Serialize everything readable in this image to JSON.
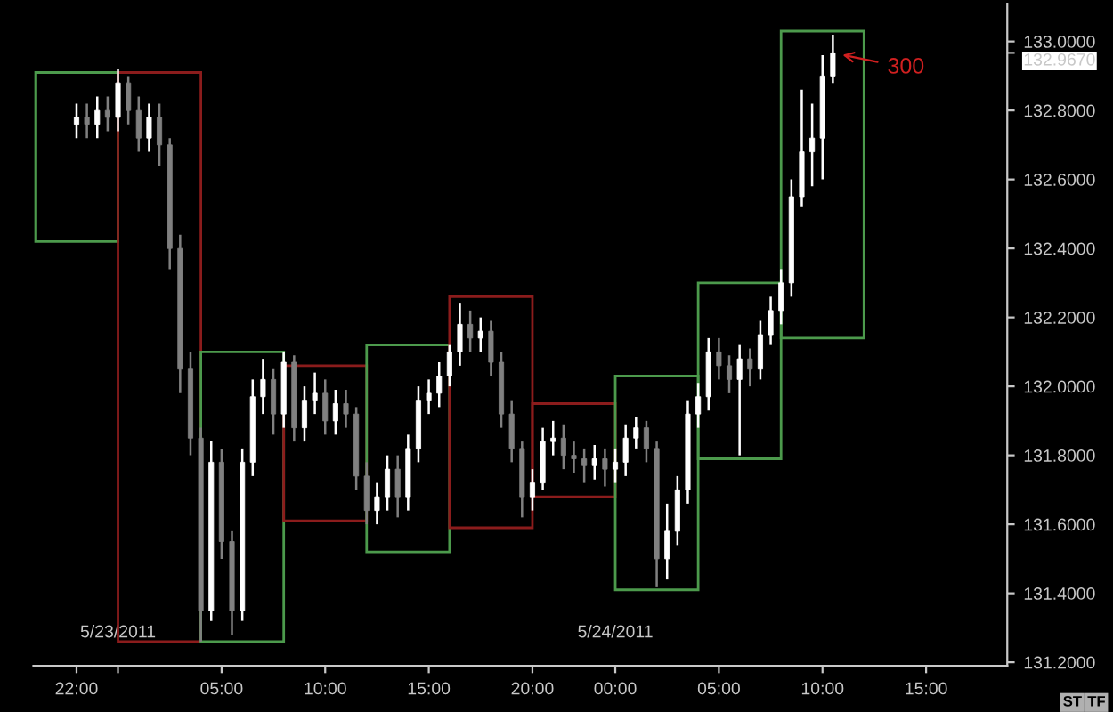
{
  "chart_data": {
    "type": "candlestick",
    "series": [
      {
        "type": "bar",
        "x": [
          "2011-05-22T22:00",
          "2011-05-23T02:00",
          "2011-05-23T06:00",
          "2011-05-23T10:00",
          "2011-05-23T14:00",
          "2011-05-23T18:00",
          "2011-05-23T22:00",
          "2011-05-24T02:00",
          "2011-05-24T06:00",
          "2011-05-24T10:00"
        ],
        "base": [
          132.42,
          131.26,
          131.26,
          131.61,
          131.52,
          131.59,
          131.68,
          131.41,
          131.79,
          132.14
        ],
        "values": [
          0.49,
          1.65,
          0.84,
          0.45,
          0.6,
          0.67,
          0.27,
          0.62,
          0.51,
          0.89
        ],
        "colors": [
          "#4c9a4c",
          "#8b1c1c",
          "#4c9a4c",
          "#8b1c1c",
          "#4c9a4c",
          "#8b1c1c",
          "#8b1c1c",
          "#4c9a4c",
          "#4c9a4c",
          "#4c9a4c"
        ]
      },
      {
        "colors": [
          "#ffffff",
          "#808080",
          "#ffffff",
          "#808080",
          "#ffffff",
          "#808080",
          "#808080",
          "#ffffff",
          "#808080",
          "#808080",
          "#808080",
          "#808080",
          "#808080",
          "#ffffff",
          "#808080",
          "#808080",
          "#ffffff",
          "#ffffff",
          "#ffffff",
          "#808080",
          "#ffffff",
          "#808080",
          "#ffffff",
          "#ffffff",
          "#808080",
          "#ffffff",
          "#808080",
          "#808080",
          "#808080",
          "#ffffff",
          "#ffffff",
          "#808080",
          "#ffffff",
          "#ffffff",
          "#ffffff",
          "#ffffff",
          "#ffffff",
          "#ffffff",
          "#808080",
          "#ffffff",
          "#808080",
          "#808080",
          "#808080",
          "#808080",
          "#ffffff",
          "#ffffff",
          "#ffffff",
          "#808080",
          "#808080",
          "#808080",
          "#ffffff",
          "#808080",
          "#ffffff",
          "#ffffff",
          "#ffffff",
          "#808080",
          "#808080",
          "#ffffff",
          "#ffffff",
          "#ffffff",
          "#ffffff",
          "#ffffff",
          "#808080",
          "#808080",
          "#ffffff",
          "#808080",
          "#ffffff",
          "#ffffff",
          "#ffffff",
          "#ffffff",
          "#ffffff",
          "#ffffff",
          "#ffffff",
          "#ffffff"
        ],
        "x": [
          "2011-05-22T22:00",
          "2011-05-22T22:30",
          "2011-05-22T23:00",
          "2011-05-22T23:30",
          "2011-05-23T00:00",
          "2011-05-23T00:30",
          "2011-05-23T01:00",
          "2011-05-23T01:30",
          "2011-05-23T02:00",
          "2011-05-23T02:30",
          "2011-05-23T03:00",
          "2011-05-23T03:30",
          "2011-05-23T04:00",
          "2011-05-23T04:30",
          "2011-05-23T05:00",
          "2011-05-23T05:30",
          "2011-05-23T06:00",
          "2011-05-23T06:30",
          "2011-05-23T07:00",
          "2011-05-23T07:30",
          "2011-05-23T08:00",
          "2011-05-23T08:30",
          "2011-05-23T09:00",
          "2011-05-23T09:30",
          "2011-05-23T10:00",
          "2011-05-23T10:30",
          "2011-05-23T11:00",
          "2011-05-23T11:30",
          "2011-05-23T12:00",
          "2011-05-23T12:30",
          "2011-05-23T13:00",
          "2011-05-23T13:30",
          "2011-05-23T14:00",
          "2011-05-23T14:30",
          "2011-05-23T15:00",
          "2011-05-23T15:30",
          "2011-05-23T16:00",
          "2011-05-23T16:30",
          "2011-05-23T17:00",
          "2011-05-23T17:30",
          "2011-05-23T18:00",
          "2011-05-23T18:30",
          "2011-05-23T19:00",
          "2011-05-23T19:30",
          "2011-05-23T20:00",
          "2011-05-23T20:30",
          "2011-05-23T21:00",
          "2011-05-23T21:30",
          "2011-05-23T22:00",
          "2011-05-23T22:30",
          "2011-05-23T23:00",
          "2011-05-23T23:30",
          "2011-05-24T00:00",
          "2011-05-24T00:30",
          "2011-05-24T01:00",
          "2011-05-24T01:30",
          "2011-05-24T02:00",
          "2011-05-24T02:30",
          "2011-05-24T03:00",
          "2011-05-24T03:30",
          "2011-05-24T04:00",
          "2011-05-24T04:30",
          "2011-05-24T05:00",
          "2011-05-24T05:30",
          "2011-05-24T06:00",
          "2011-05-24T06:30",
          "2011-05-24T07:00",
          "2011-05-24T07:30",
          "2011-05-24T08:00",
          "2011-05-24T08:30",
          "2011-05-24T09:00",
          "2011-05-24T09:30",
          "2011-05-24T10:00",
          "2011-05-24T10:30"
        ],
        "ohlc": [
          [
            132.76,
            132.82,
            132.72,
            132.78
          ],
          [
            132.78,
            132.82,
            132.72,
            132.76
          ],
          [
            132.76,
            132.84,
            132.72,
            132.8
          ],
          [
            132.8,
            132.84,
            132.74,
            132.78
          ],
          [
            132.78,
            132.92,
            132.74,
            132.88
          ],
          [
            132.88,
            132.9,
            132.76,
            132.8
          ],
          [
            132.8,
            132.84,
            132.68,
            132.72
          ],
          [
            132.72,
            132.82,
            132.68,
            132.78
          ],
          [
            132.78,
            132.82,
            132.64,
            132.7
          ],
          [
            132.7,
            132.72,
            132.34,
            132.4
          ],
          [
            132.4,
            132.44,
            131.98,
            132.05
          ],
          [
            132.05,
            132.1,
            131.8,
            131.85
          ],
          [
            131.85,
            131.88,
            131.26,
            131.35
          ],
          [
            131.35,
            131.84,
            131.32,
            131.78
          ],
          [
            131.78,
            131.82,
            131.5,
            131.55
          ],
          [
            131.55,
            131.58,
            131.28,
            131.35
          ],
          [
            131.35,
            131.82,
            131.32,
            131.78
          ],
          [
            131.78,
            132.02,
            131.74,
            131.97
          ],
          [
            131.97,
            132.08,
            131.92,
            132.02
          ],
          [
            132.02,
            132.05,
            131.86,
            131.92
          ],
          [
            131.92,
            132.1,
            131.88,
            132.07
          ],
          [
            132.07,
            132.09,
            131.84,
            131.88
          ],
          [
            131.88,
            132.0,
            131.84,
            131.96
          ],
          [
            131.96,
            132.04,
            131.92,
            131.98
          ],
          [
            131.98,
            132.02,
            131.86,
            131.9
          ],
          [
            131.9,
            131.99,
            131.86,
            131.95
          ],
          [
            131.95,
            131.99,
            131.88,
            131.92
          ],
          [
            131.92,
            131.94,
            131.7,
            131.74
          ],
          [
            131.74,
            131.78,
            131.6,
            131.64
          ],
          [
            131.64,
            131.72,
            131.6,
            131.68
          ],
          [
            131.68,
            131.8,
            131.64,
            131.76
          ],
          [
            131.76,
            131.8,
            131.62,
            131.68
          ],
          [
            131.68,
            131.86,
            131.64,
            131.82
          ],
          [
            131.82,
            132.0,
            131.78,
            131.96
          ],
          [
            131.96,
            132.02,
            131.92,
            131.98
          ],
          [
            131.98,
            132.07,
            131.94,
            132.03
          ],
          [
            132.03,
            132.12,
            132.0,
            132.1
          ],
          [
            132.1,
            132.24,
            132.06,
            132.18
          ],
          [
            132.18,
            132.22,
            132.1,
            132.14
          ],
          [
            132.14,
            132.2,
            132.1,
            132.16
          ],
          [
            132.16,
            132.19,
            132.03,
            132.07
          ],
          [
            132.07,
            132.1,
            131.88,
            131.92
          ],
          [
            131.92,
            131.96,
            131.78,
            131.82
          ],
          [
            131.82,
            131.84,
            131.62,
            131.68
          ],
          [
            131.68,
            131.76,
            131.64,
            131.72
          ],
          [
            131.72,
            131.88,
            131.7,
            131.84
          ],
          [
            131.84,
            131.9,
            131.8,
            131.85
          ],
          [
            131.85,
            131.89,
            131.76,
            131.8
          ],
          [
            131.8,
            131.84,
            131.75,
            131.79
          ],
          [
            131.79,
            131.82,
            131.72,
            131.77
          ],
          [
            131.77,
            131.83,
            131.73,
            131.79
          ],
          [
            131.79,
            131.82,
            131.71,
            131.76
          ],
          [
            131.76,
            131.82,
            131.72,
            131.78
          ],
          [
            131.78,
            131.89,
            131.74,
            131.85
          ],
          [
            131.85,
            131.91,
            131.82,
            131.88
          ],
          [
            131.88,
            131.9,
            131.78,
            131.82
          ],
          [
            131.82,
            131.84,
            131.42,
            131.5
          ],
          [
            131.5,
            131.66,
            131.44,
            131.58
          ],
          [
            131.58,
            131.74,
            131.54,
            131.7
          ],
          [
            131.7,
            131.96,
            131.66,
            131.92
          ],
          [
            131.92,
            132.01,
            131.88,
            131.97
          ],
          [
            131.97,
            132.14,
            131.93,
            132.1
          ],
          [
            132.1,
            132.14,
            132.02,
            132.06
          ],
          [
            132.06,
            132.09,
            131.98,
            132.02
          ],
          [
            132.02,
            132.12,
            131.8,
            132.08
          ],
          [
            132.08,
            132.11,
            132.0,
            132.05
          ],
          [
            132.05,
            132.19,
            132.02,
            132.15
          ],
          [
            132.15,
            132.26,
            132.12,
            132.22
          ],
          [
            132.22,
            132.34,
            132.18,
            132.3
          ],
          [
            132.3,
            132.6,
            132.26,
            132.55
          ],
          [
            132.55,
            132.86,
            132.52,
            132.68
          ],
          [
            132.68,
            132.82,
            132.58,
            132.72
          ],
          [
            132.72,
            132.96,
            132.6,
            132.9
          ],
          [
            132.9,
            133.02,
            132.88,
            132.967
          ]
        ]
      }
    ],
    "xlim": [
      "2011-05-22T19:55",
      "2011-05-24T18:55"
    ],
    "xticks": [
      {
        "value": "2011-05-22T22:00",
        "label": "22:00"
      },
      {
        "value": "2011-05-23T00:00",
        "label": null
      },
      {
        "value": "2011-05-23T05:00",
        "label": "05:00"
      },
      {
        "value": "2011-05-23T10:00",
        "label": "10:00"
      },
      {
        "value": "2011-05-23T15:00",
        "label": "15:00"
      },
      {
        "value": "2011-05-23T20:00",
        "label": "20:00"
      },
      {
        "value": "2011-05-24T00:00",
        "label": "00:00"
      },
      {
        "value": "2011-05-24T05:00",
        "label": "05:00"
      },
      {
        "value": "2011-05-24T10:00",
        "label": "10:00"
      },
      {
        "value": "2011-05-24T15:00",
        "label": "15:00"
      }
    ],
    "x2lim": [
      "2011-05-22T19:55",
      "2011-05-24T18:55"
    ],
    "x2ticks": [
      {
        "value": "2011-05-23T00:00",
        "label": "5/23/2011"
      },
      {
        "value": "2011-05-24T00:00",
        "label": "5/24/2011"
      }
    ],
    "ylim": [
      131.19,
      133.11
    ],
    "yticks": [
      {
        "value": 131.2,
        "label": "131.2000"
      },
      {
        "value": 131.4,
        "label": "131.4000"
      },
      {
        "value": 131.6,
        "label": "131.6000"
      },
      {
        "value": 131.8,
        "label": "131.8000"
      },
      {
        "value": 132.0,
        "label": "132.0000"
      },
      {
        "value": 132.2,
        "label": "132.2000"
      },
      {
        "value": 132.4,
        "label": "132.4000"
      },
      {
        "value": 132.6,
        "label": "132.6000"
      },
      {
        "value": 132.8,
        "label": "132.8000"
      },
      {
        "value": 133.0,
        "label": "133.0000"
      },
      {
        "value": 132.967,
        "label": "132.9670"
      }
    ],
    "annotations": [
      {
        "text": "300",
        "x": "2011-05-24T10:30",
        "y": 132.967
      },
      "ST",
      "TF"
    ],
    "grid": false,
    "legend": false
  }
}
